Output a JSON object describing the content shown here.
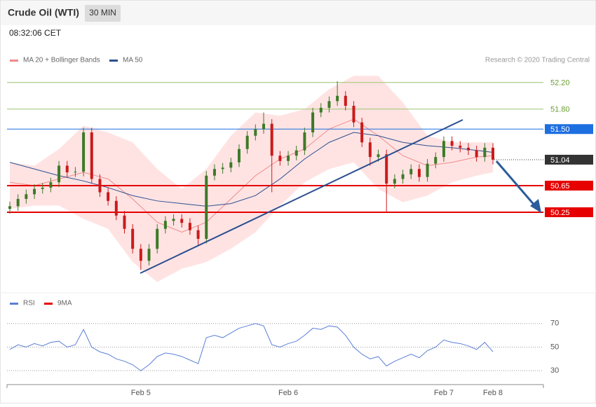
{
  "header": {
    "title": "Crude Oil (WTI)",
    "interval": "30 MIN",
    "time": "08:32:06 CET",
    "credit": "Research © 2020 Trading Central"
  },
  "chart_data": [
    {
      "type": "candlestick",
      "categories": [
        null,
        null,
        null,
        null,
        null,
        null,
        null,
        null,
        null,
        null,
        null,
        null,
        null,
        null,
        null,
        null,
        "Feb 5",
        null,
        null,
        null,
        null,
        null,
        null,
        null,
        null,
        null,
        null,
        null,
        null,
        null,
        null,
        null,
        null,
        null,
        "Feb 6",
        null,
        null,
        null,
        null,
        null,
        null,
        null,
        null,
        null,
        null,
        null,
        null,
        null,
        null,
        null,
        null,
        null,
        null,
        "Feb 7",
        null,
        null,
        null,
        null,
        null,
        "Feb 8"
      ],
      "open": [
        50.3,
        50.34,
        50.45,
        50.52,
        50.6,
        50.62,
        50.7,
        50.95,
        50.85,
        50.86,
        51.45,
        50.75,
        50.55,
        50.42,
        50.2,
        50.0,
        49.7,
        49.52,
        49.7,
        50.0,
        50.12,
        50.15,
        50.09,
        49.98,
        49.85,
        50.8,
        50.9,
        50.92,
        51.0,
        51.2,
        51.4,
        51.5,
        51.58,
        51.1,
        51.02,
        51.1,
        51.18,
        51.45,
        51.75,
        51.82,
        51.92,
        52.0,
        51.85,
        51.6,
        51.3,
        51.08,
        51.12,
        50.68,
        50.75,
        50.82,
        50.9,
        50.78,
        50.98,
        51.08,
        51.32,
        51.25,
        51.22,
        51.18,
        51.08,
        51.22
      ],
      "high": [
        50.41,
        50.52,
        50.59,
        50.67,
        50.69,
        50.77,
        51.02,
        51.02,
        50.93,
        51.52,
        51.52,
        50.82,
        50.62,
        50.49,
        50.27,
        50.07,
        49.77,
        49.77,
        50.07,
        50.19,
        50.22,
        50.22,
        50.16,
        50.05,
        50.87,
        50.97,
        50.99,
        51.07,
        51.27,
        51.47,
        51.57,
        51.75,
        51.65,
        51.17,
        51.17,
        51.25,
        51.52,
        51.82,
        51.89,
        51.99,
        52.22,
        52.07,
        51.92,
        51.67,
        51.37,
        51.19,
        51.19,
        50.82,
        50.89,
        50.97,
        50.97,
        51.05,
        51.15,
        51.39,
        51.39,
        51.32,
        51.29,
        51.25,
        51.29,
        51.29
      ],
      "low": [
        50.23,
        50.27,
        50.38,
        50.45,
        50.53,
        50.55,
        50.63,
        50.78,
        50.78,
        50.79,
        50.68,
        50.48,
        50.35,
        50.13,
        49.93,
        49.63,
        49.38,
        49.45,
        49.63,
        49.93,
        50.05,
        50.02,
        49.91,
        49.75,
        49.78,
        50.73,
        50.83,
        50.85,
        50.93,
        51.13,
        51.33,
        51.43,
        50.55,
        50.95,
        50.95,
        51.03,
        51.11,
        51.38,
        51.68,
        51.75,
        51.85,
        51.78,
        51.53,
        51.23,
        50.95,
        51.01,
        50.25,
        50.61,
        50.68,
        50.75,
        50.71,
        50.71,
        50.91,
        51.01,
        51.18,
        51.15,
        51.11,
        51.01,
        51.01,
        50.97
      ],
      "close": [
        50.34,
        50.45,
        50.52,
        50.6,
        50.62,
        50.7,
        50.95,
        50.85,
        50.86,
        51.45,
        50.75,
        50.55,
        50.42,
        50.2,
        50.0,
        49.7,
        49.52,
        49.7,
        50.0,
        50.12,
        50.15,
        50.09,
        49.98,
        49.85,
        50.8,
        50.9,
        50.92,
        51.0,
        51.2,
        51.4,
        51.5,
        51.58,
        51.1,
        51.02,
        51.1,
        51.18,
        51.45,
        51.75,
        51.82,
        51.92,
        52.0,
        51.85,
        51.6,
        51.3,
        51.08,
        51.12,
        50.68,
        50.75,
        50.82,
        50.9,
        50.78,
        50.98,
        51.08,
        51.32,
        51.25,
        51.22,
        51.18,
        51.08,
        51.22,
        51.04
      ],
      "up_color": "#3d7a27",
      "down_color": "#cc1a1a",
      "ylim": [
        49.07,
        52.44
      ],
      "overlays": [
        {
          "name": "MA 20 + Bollinger Bands",
          "color": "#f08a8a",
          "band_color": "#ffdcdc",
          "x": [
            0,
            3,
            6,
            9,
            12,
            15,
            18,
            21,
            24,
            27,
            30,
            33,
            36,
            39,
            42,
            45,
            48,
            51,
            54,
            57,
            59
          ],
          "values": [
            50.7,
            50.65,
            50.75,
            50.85,
            50.75,
            50.45,
            50.1,
            49.95,
            50.1,
            50.45,
            50.8,
            51.05,
            51.2,
            51.5,
            51.65,
            51.4,
            51.1,
            50.95,
            51.0,
            51.08,
            51.1
          ],
          "upper": [
            51.0,
            50.95,
            51.2,
            51.55,
            51.45,
            51.3,
            50.9,
            50.6,
            50.9,
            51.4,
            51.75,
            51.7,
            51.8,
            52.1,
            52.3,
            52.3,
            51.9,
            51.4,
            51.3,
            51.3,
            51.3
          ],
          "lower": [
            50.3,
            50.35,
            50.35,
            50.15,
            50.0,
            49.5,
            49.2,
            49.4,
            49.5,
            49.7,
            49.95,
            50.35,
            50.7,
            50.9,
            51.0,
            50.6,
            50.4,
            50.5,
            50.7,
            50.8,
            50.85
          ]
        },
        {
          "name": "MA 50",
          "color": "#2b4f8f",
          "x": [
            0,
            3,
            6,
            9,
            12,
            15,
            18,
            21,
            24,
            27,
            30,
            33,
            36,
            39,
            42,
            45,
            48,
            51,
            54,
            57,
            59
          ],
          "values": [
            51.0,
            50.9,
            50.8,
            50.72,
            50.62,
            50.5,
            50.42,
            50.38,
            50.34,
            50.38,
            50.5,
            50.75,
            51.05,
            51.3,
            51.45,
            51.4,
            51.3,
            51.25,
            51.22,
            51.18,
            51.15
          ]
        }
      ],
      "levels": [
        {
          "price": {
            "value": 52.2,
            "label": "52.20"
          },
          "color": "#9cc46e",
          "boxed": false
        },
        {
          "price": {
            "value": 51.8,
            "label": "51.80"
          },
          "color": "#9cc46e",
          "boxed": false
        },
        {
          "price": {
            "value": 51.5,
            "label": "51.50"
          },
          "color": "#1e6fe0",
          "boxed": true
        },
        {
          "price": 51.04,
          "color": "#333333",
          "boxed": true,
          "dotted": true
        },
        {
          "price": 50.65,
          "color": "#e60000",
          "boxed": true
        },
        {
          "price": 50.25,
          "color": "#e60000",
          "boxed": true
        }
      ]
    },
    {
      "type": "line",
      "series": [
        {
          "name": "RSI",
          "color": "#5b7fd6",
          "values": [
            48,
            52,
            50,
            53,
            51,
            54,
            55,
            50,
            52,
            65,
            50,
            46,
            44,
            40,
            38,
            35,
            30,
            35,
            42,
            45,
            44,
            42,
            39,
            36,
            58,
            60,
            58,
            62,
            66,
            68,
            70,
            68,
            52,
            50,
            53,
            55,
            60,
            66,
            65,
            68,
            67,
            60,
            50,
            44,
            40,
            42,
            34,
            38,
            41,
            44,
            41,
            47,
            50,
            56,
            54,
            53,
            51,
            48,
            54,
            46
          ]
        }
      ],
      "signal": {
        "name": "9MA",
        "color": "#e60000"
      },
      "ylim": [
        20,
        80
      ],
      "yticks": [
        30,
        50,
        70
      ],
      "grid": true
    }
  ]
}
